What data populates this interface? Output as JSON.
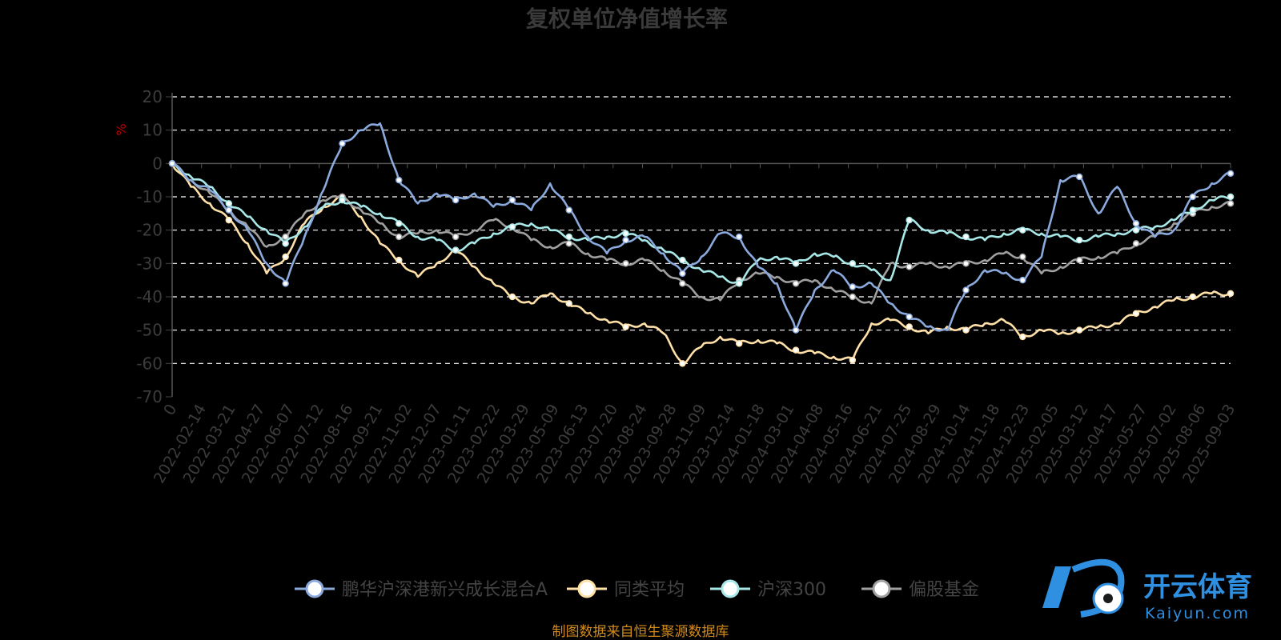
{
  "chart_data": {
    "type": "line",
    "title": "复权单位净值增长率",
    "ylabel": "%",
    "ylim": [
      -70,
      20
    ],
    "yticks": [
      20,
      10,
      0,
      -10,
      -20,
      -30,
      -40,
      -50,
      -60,
      -70
    ],
    "grid": true,
    "legend_position": "bottom",
    "x_tick_labels": [
      "0",
      "2022-02-14",
      "2022-03-21",
      "2022-04-27",
      "2022-06-07",
      "2022-07-12",
      "2022-08-16",
      "2022-09-21",
      "2022-11-02",
      "2022-12-07",
      "2023-01-11",
      "2023-02-22",
      "2023-03-29",
      "2023-05-09",
      "2023-06-13",
      "2023-07-20",
      "2023-08-24",
      "2023-09-28",
      "2023-11-09",
      "2023-12-14",
      "2024-01-18",
      "2024-03-01",
      "2024-04-08",
      "2024-05-16",
      "2024-06-21",
      "2024-07-25",
      "2024-08-29",
      "2024-10-14",
      "2024-11-18",
      "2024-12-23",
      "2025-02-05",
      "2025-03-12",
      "2025-04-17",
      "2025-05-27",
      "2025-07-02",
      "2025-08-06",
      "2025-09-03"
    ],
    "series": [
      {
        "name": "鹏华沪深港新兴成长混合A",
        "color": "#8aa9dc",
        "values": [
          0,
          -5,
          -8,
          -14,
          -20,
          -30,
          -36,
          -22,
          -8,
          6,
          10,
          12,
          -5,
          -12,
          -9,
          -11,
          -9,
          -13,
          -11,
          -14,
          -6,
          -14,
          -22,
          -27,
          -23,
          -22,
          -27,
          -33,
          -28,
          -21,
          -22,
          -31,
          -36,
          -50,
          -38,
          -32,
          -37,
          -36,
          -42,
          -46,
          -49,
          -50,
          -38,
          -32,
          -33,
          -35,
          -28,
          -5,
          -4,
          -15,
          -7,
          -18,
          -22,
          -20,
          -10,
          -6,
          -3
        ]
      },
      {
        "name": "同类平均",
        "color": "#ffe0a8",
        "values": [
          0,
          -7,
          -12,
          -17,
          -24,
          -33,
          -28,
          -18,
          -13,
          -10,
          -16,
          -24,
          -29,
          -34,
          -30,
          -26,
          -31,
          -36,
          -40,
          -42,
          -39,
          -42,
          -45,
          -47,
          -49,
          -48,
          -51,
          -60,
          -55,
          -52,
          -54,
          -53,
          -54,
          -56,
          -57,
          -58,
          -59,
          -48,
          -47,
          -49,
          -51,
          -49,
          -50,
          -48,
          -47,
          -52,
          -50,
          -51,
          -50,
          -49,
          -48,
          -45,
          -43,
          -41,
          -40,
          -39,
          -39
        ]
      },
      {
        "name": "沪深300",
        "color": "#a8e8e8",
        "values": [
          0,
          -4,
          -7,
          -12,
          -16,
          -20,
          -24,
          -19,
          -13,
          -11,
          -13,
          -15,
          -18,
          -22,
          -23,
          -26,
          -24,
          -21,
          -19,
          -18,
          -20,
          -22,
          -23,
          -22,
          -21,
          -23,
          -26,
          -29,
          -32,
          -34,
          -36,
          -29,
          -28,
          -30,
          -27,
          -28,
          -30,
          -32,
          -35,
          -17,
          -20,
          -21,
          -22,
          -23,
          -21,
          -20,
          -21,
          -22,
          -23,
          -22,
          -21,
          -20,
          -19,
          -17,
          -14,
          -11,
          -10
        ]
      },
      {
        "name": "偏股基金",
        "color": "#a0a0a0",
        "values": [
          0,
          -5,
          -9,
          -14,
          -19,
          -25,
          -22,
          -15,
          -11,
          -10,
          -14,
          -18,
          -22,
          -21,
          -20,
          -22,
          -20,
          -17,
          -19,
          -23,
          -25,
          -24,
          -27,
          -29,
          -30,
          -29,
          -32,
          -36,
          -40,
          -41,
          -35,
          -33,
          -34,
          -36,
          -35,
          -38,
          -40,
          -42,
          -30,
          -31,
          -30,
          -31,
          -30,
          -29,
          -27,
          -28,
          -33,
          -31,
          -29,
          -28,
          -27,
          -24,
          -22,
          -18,
          -15,
          -13,
          -12
        ]
      }
    ]
  },
  "source_note": "制图数据来自恒生聚源数据库",
  "watermark": {
    "cn": "开云体育",
    "en": "Kaiyun.com"
  }
}
